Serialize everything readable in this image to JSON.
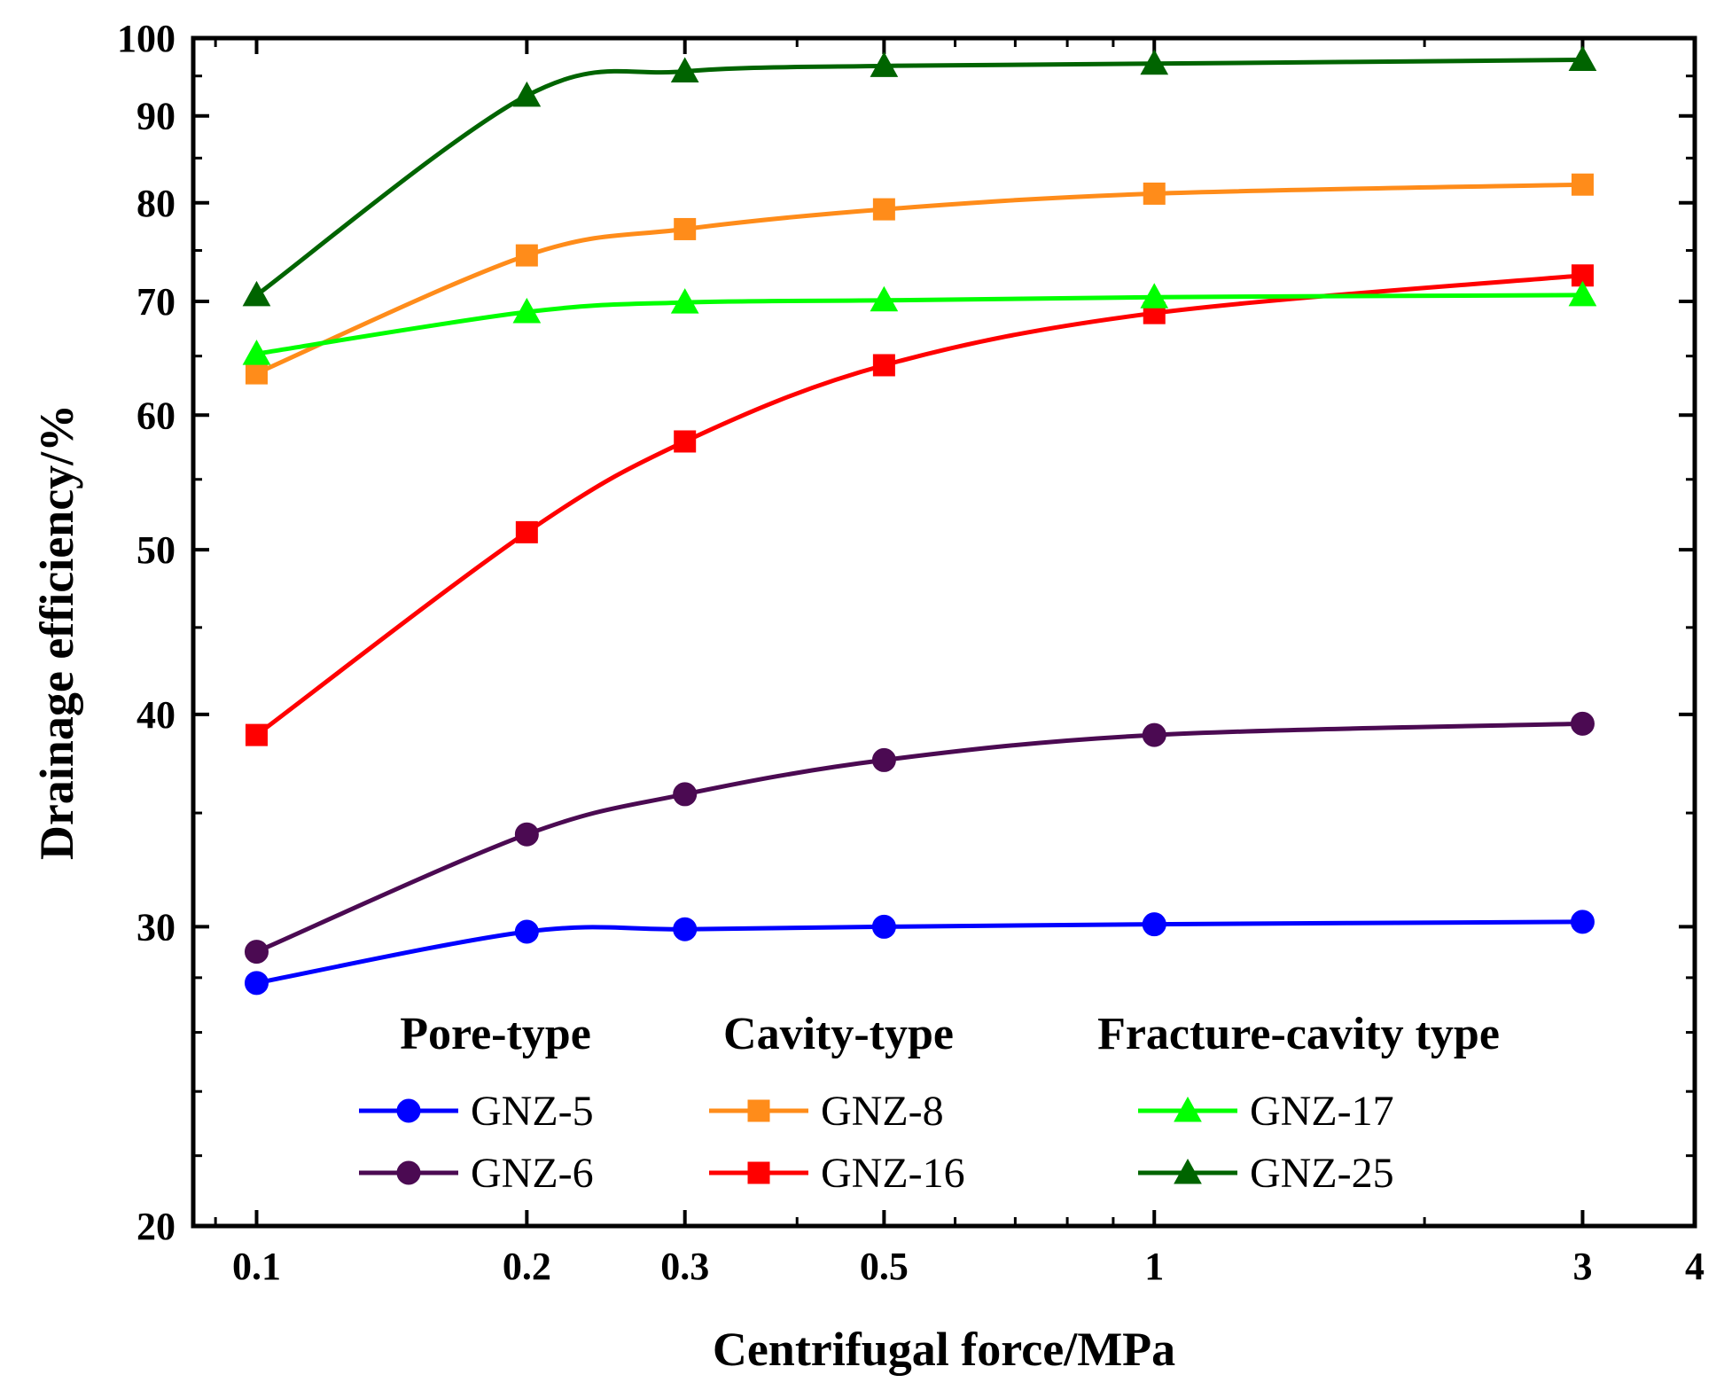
{
  "chart_data": {
    "type": "line",
    "title": "",
    "xlabel": "Centrifugal force/MPa",
    "ylabel": "Drainage efficiency/%",
    "xscale": "log",
    "yscale": "log",
    "xlim": [
      0.085,
      4
    ],
    "ylim": [
      20,
      100
    ],
    "x_ticks": [
      {
        "value": 0.1,
        "label": "0.1"
      },
      {
        "value": 0.2,
        "label": "0.2"
      },
      {
        "value": 0.3,
        "label": "0.3"
      },
      {
        "value": 0.5,
        "label": "0.5"
      },
      {
        "value": 1,
        "label": "1"
      },
      {
        "value": 3,
        "label": "3"
      },
      {
        "value": 4,
        "label": "4"
      }
    ],
    "y_ticks": [
      {
        "value": 20,
        "label": "20"
      },
      {
        "value": 30,
        "label": "30"
      },
      {
        "value": 40,
        "label": "40"
      },
      {
        "value": 50,
        "label": "50"
      },
      {
        "value": 60,
        "label": "60"
      },
      {
        "value": 70,
        "label": "70"
      },
      {
        "value": 80,
        "label": "80"
      },
      {
        "value": 90,
        "label": "90"
      },
      {
        "value": 100,
        "label": "100"
      }
    ],
    "grid": false,
    "legend_position": "bottom-center",
    "legend_groups": [
      "Pore-type",
      "Cavity-type",
      "Fracture-cavity type"
    ],
    "x": [
      0.1,
      0.2,
      0.3,
      0.5,
      1,
      3
    ],
    "series": [
      {
        "name": "GNZ-5",
        "group": "Pore-type",
        "color": "#0000ff",
        "marker": "circle",
        "values": [
          27.8,
          29.8,
          29.9,
          30.0,
          30.1,
          30.2
        ]
      },
      {
        "name": "GNZ-6",
        "group": "Pore-type",
        "color": "#4b0a52",
        "marker": "circle",
        "values": [
          29.0,
          34.0,
          35.9,
          37.6,
          38.9,
          39.5
        ]
      },
      {
        "name": "GNZ-8",
        "group": "Cavity-type",
        "color": "#ff8c1a",
        "marker": "square",
        "values": [
          63.5,
          74.5,
          77.2,
          79.3,
          81.0,
          82.0
        ]
      },
      {
        "name": "GNZ-16",
        "group": "Cavity-type",
        "color": "#ff0000",
        "marker": "square",
        "values": [
          38.9,
          51.2,
          57.9,
          64.2,
          68.9,
          72.5
        ]
      },
      {
        "name": "GNZ-17",
        "group": "Fracture-cavity type",
        "color": "#00ff00",
        "marker": "triangle",
        "values": [
          65.2,
          69.0,
          69.9,
          70.1,
          70.4,
          70.6
        ]
      },
      {
        "name": "GNZ-25",
        "group": "Fracture-cavity type",
        "color": "#006400",
        "marker": "triangle",
        "values": [
          70.6,
          92.5,
          95.6,
          96.3,
          96.6,
          97.1
        ]
      }
    ]
  }
}
